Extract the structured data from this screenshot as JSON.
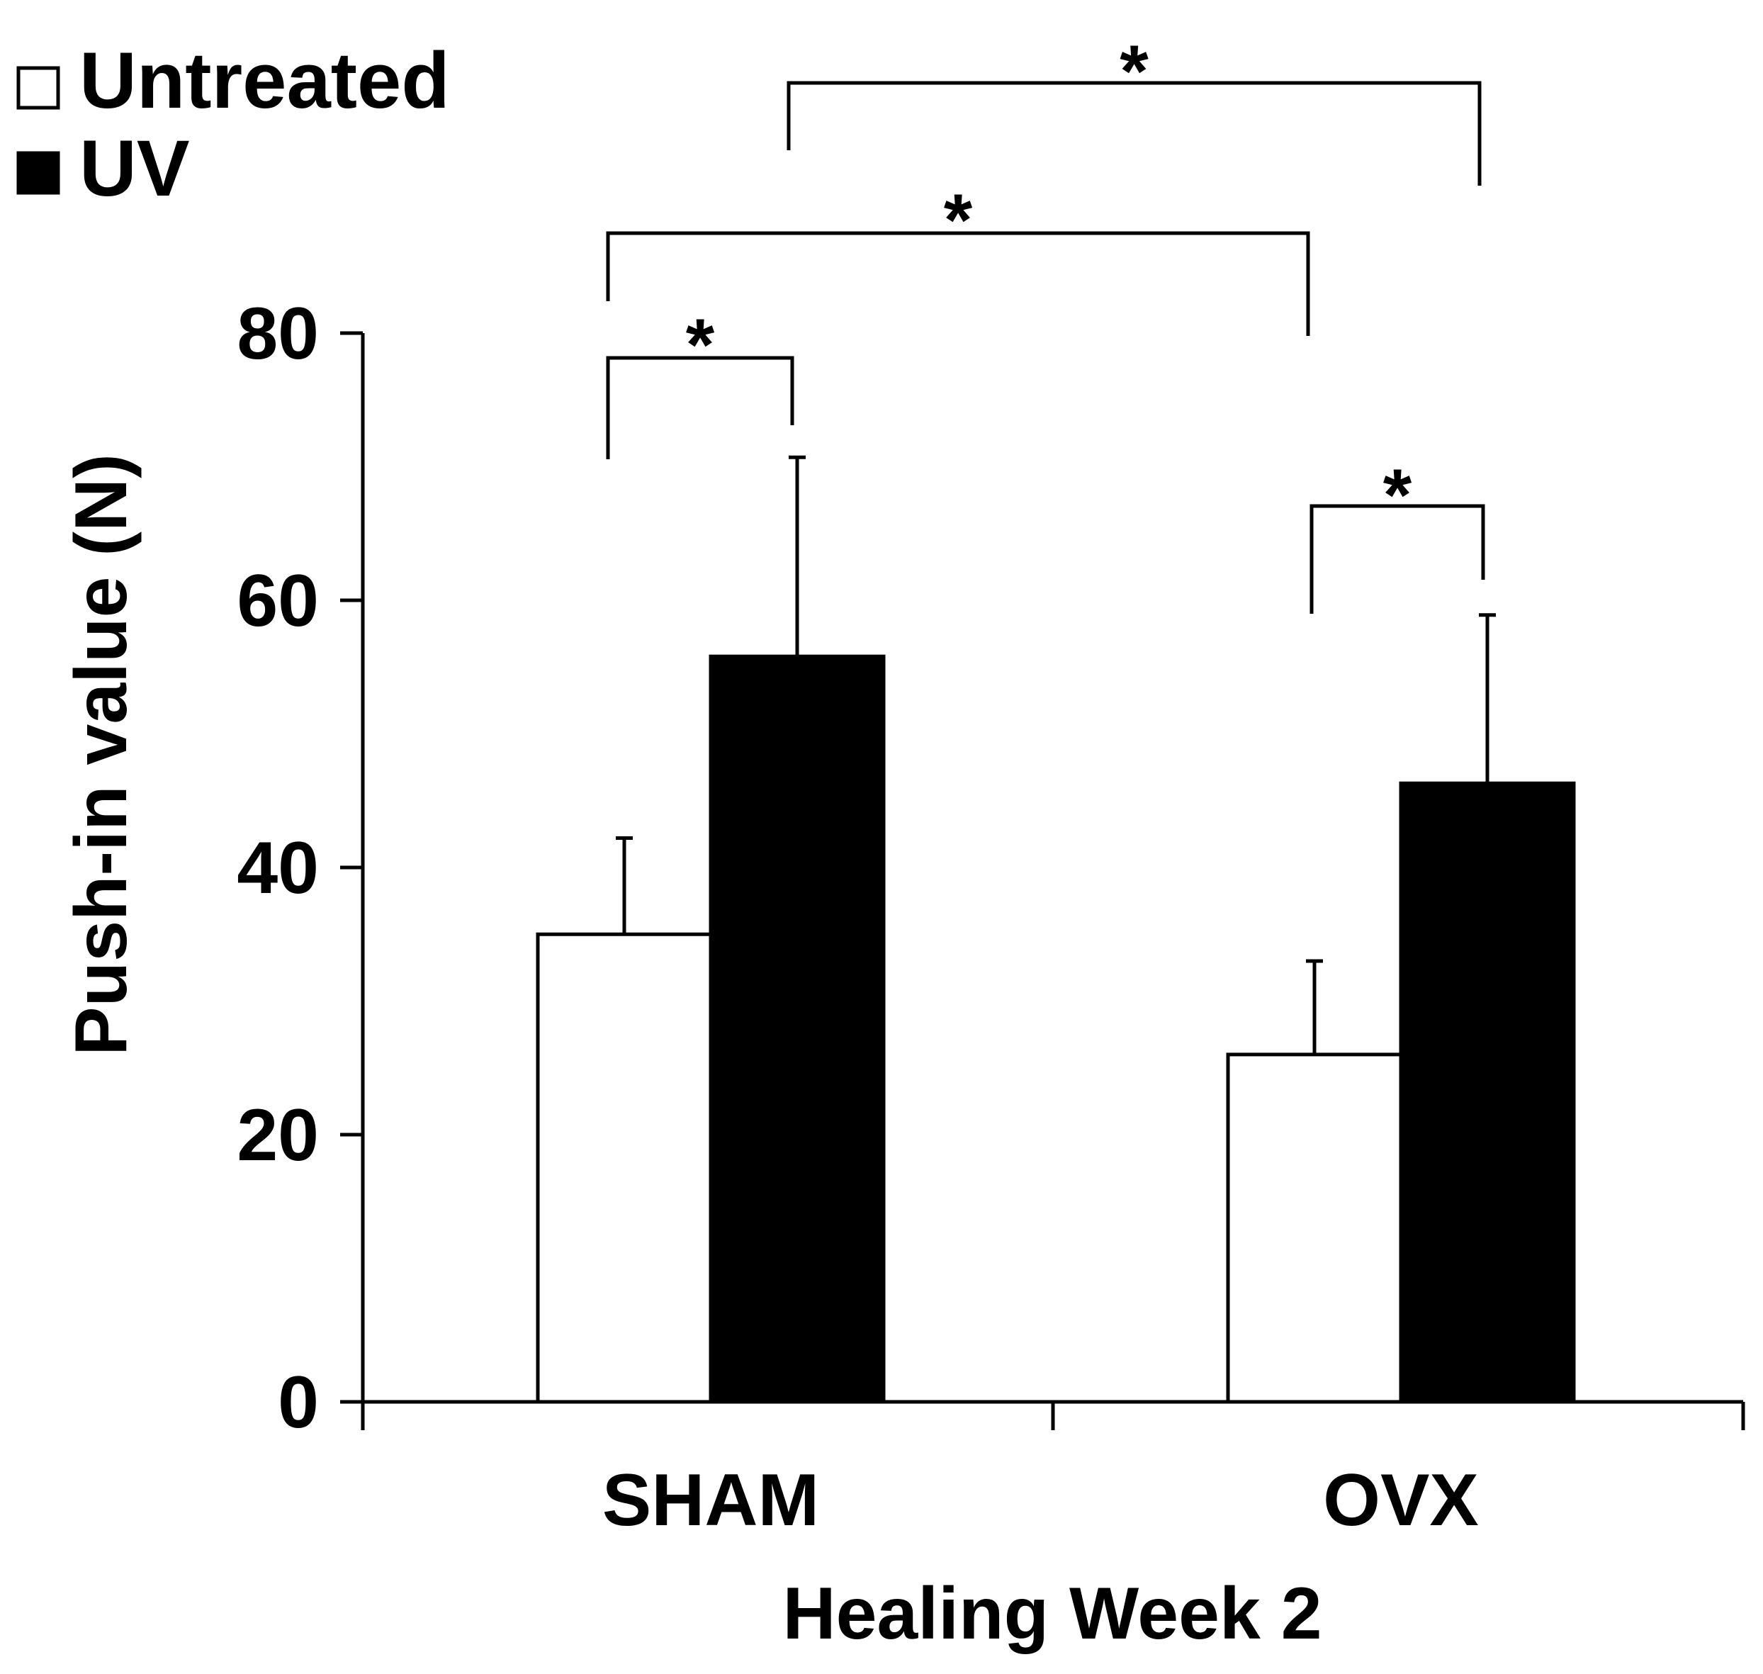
{
  "chart_data": {
    "type": "bar",
    "title": "",
    "xlabel": "Healing Week 2",
    "ylabel": "Push-in value (N)",
    "ylim": [
      0,
      80
    ],
    "yticks": [
      0,
      20,
      40,
      60,
      80
    ],
    "grid": false,
    "legend_position": "top-left",
    "categories": [
      "SHAM",
      "OVX"
    ],
    "series": [
      {
        "name": "Untreated",
        "color": "#ffffff",
        "values": [
          35,
          26
        ],
        "errors": [
          7.2,
          7.0
        ]
      },
      {
        "name": "UV",
        "color": "#000000",
        "values": [
          55.8,
          46.3
        ],
        "errors": [
          14.9,
          12.6
        ]
      }
    ],
    "significance": [
      {
        "label": "*",
        "from": {
          "category": "SHAM",
          "series": "Untreated"
        },
        "to": {
          "category": "SHAM",
          "series": "UV"
        }
      },
      {
        "label": "*",
        "from": {
          "category": "OVX",
          "series": "Untreated"
        },
        "to": {
          "category": "OVX",
          "series": "UV"
        }
      },
      {
        "label": "*",
        "from": {
          "category": "SHAM",
          "series": "Untreated"
        },
        "to": {
          "category": "OVX",
          "series": "Untreated"
        }
      },
      {
        "label": "*",
        "from": {
          "category": "SHAM",
          "series": "UV"
        },
        "to": {
          "category": "OVX",
          "series": "UV"
        }
      }
    ]
  }
}
